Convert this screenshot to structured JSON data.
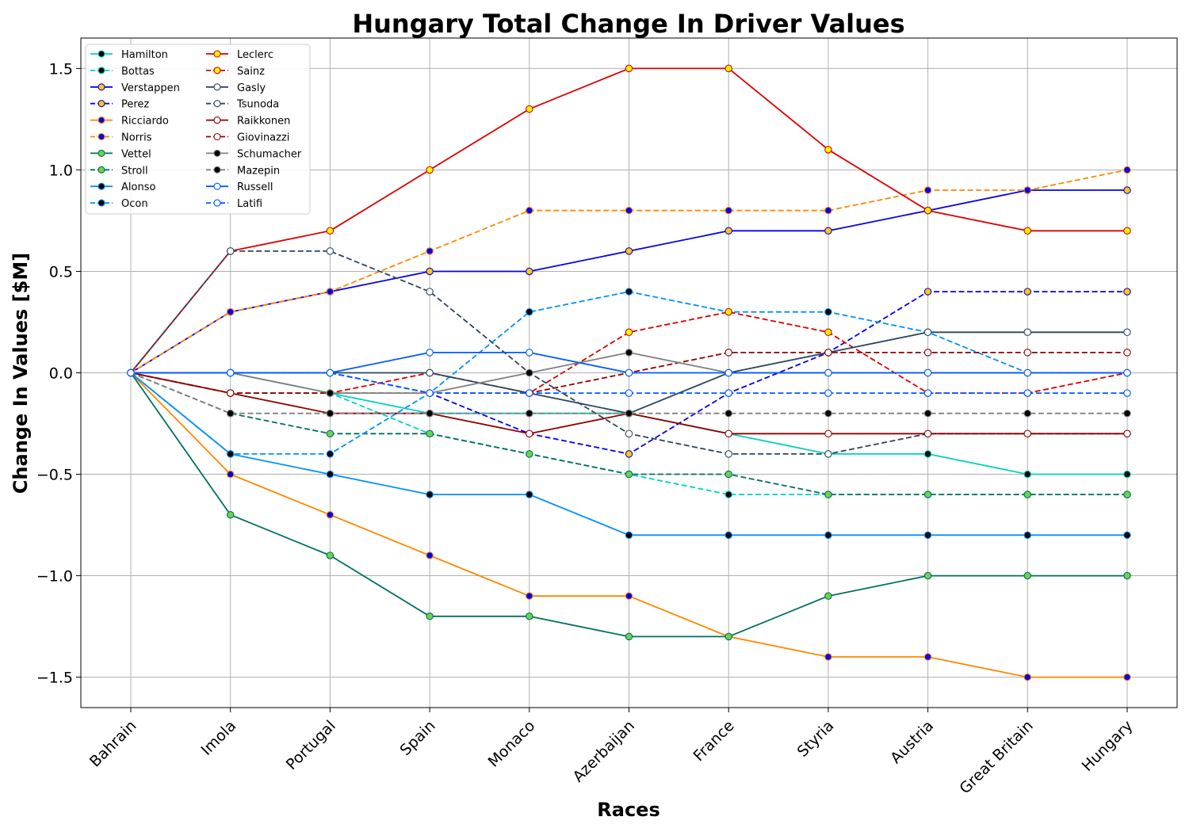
{
  "chart_data": {
    "type": "line",
    "title": "Hungary Total Change In Driver Values",
    "xlabel": "Races",
    "ylabel": "Change In Values [$M]",
    "categories": [
      "Bahrain",
      "Imola",
      "Portugal",
      "Spain",
      "Monaco",
      "Azerbaijan",
      "France",
      "Styria",
      "Austria",
      "Great Britain",
      "Hungary"
    ],
    "ylim": [
      -1.65,
      1.65
    ],
    "yticks": [
      -1.5,
      -1.0,
      -0.5,
      0.0,
      0.5,
      1.0,
      1.5
    ],
    "ytick_labels": [
      "−1.5",
      "−1.0",
      "−0.5",
      "0.0",
      "0.5",
      "1.0",
      "1.5"
    ],
    "grid": true,
    "legend_placement": "top-left",
    "series": [
      {
        "name": "Hamilton",
        "color": "#00D2BE",
        "dash": "solid",
        "marker_fill": "#000000",
        "values": [
          0,
          0,
          -0.1,
          -0.2,
          -0.2,
          -0.2,
          -0.3,
          -0.4,
          -0.4,
          -0.5,
          -0.5
        ]
      },
      {
        "name": "Bottas",
        "color": "#00D2BE",
        "dash": "dashed",
        "marker_fill": "#000000",
        "values": [
          0,
          -0.1,
          -0.1,
          -0.3,
          -0.4,
          -0.5,
          -0.6,
          -0.6,
          -0.6,
          -0.6,
          -0.6
        ]
      },
      {
        "name": "Verstappen",
        "color": "#0600EF",
        "dash": "solid",
        "marker_fill": "#FFC906",
        "values": [
          0,
          0.3,
          0.4,
          0.5,
          0.5,
          0.6,
          0.7,
          0.7,
          0.8,
          0.9,
          0.9
        ]
      },
      {
        "name": "Perez",
        "color": "#0600EF",
        "dash": "dashed",
        "marker_fill": "#FFC906",
        "values": [
          0,
          0,
          0,
          -0.1,
          -0.3,
          -0.4,
          -0.1,
          0.1,
          0.4,
          0.4,
          0.4
        ]
      },
      {
        "name": "Ricciardo",
        "color": "#FF8700",
        "dash": "solid",
        "marker_fill": "#0600EF",
        "values": [
          0,
          -0.5,
          -0.7,
          -0.9,
          -1.1,
          -1.1,
          -1.3,
          -1.4,
          -1.4,
          -1.5,
          -1.5
        ]
      },
      {
        "name": "Norris",
        "color": "#FF8700",
        "dash": "dashed",
        "marker_fill": "#0600EF",
        "values": [
          0,
          0.3,
          0.4,
          0.6,
          0.8,
          0.8,
          0.8,
          0.8,
          0.9,
          0.9,
          1.0
        ]
      },
      {
        "name": "Vettel",
        "color": "#006F62",
        "dash": "solid",
        "marker_fill": "#6CD34E",
        "values": [
          0,
          -0.7,
          -0.9,
          -1.2,
          -1.2,
          -1.3,
          -1.3,
          -1.1,
          -1.0,
          -1.0,
          -1.0
        ]
      },
      {
        "name": "Stroll",
        "color": "#006F62",
        "dash": "dashed",
        "marker_fill": "#6CD34E",
        "values": [
          0,
          -0.2,
          -0.3,
          -0.3,
          -0.4,
          -0.5,
          -0.5,
          -0.6,
          -0.6,
          -0.6,
          -0.6
        ]
      },
      {
        "name": "Alonso",
        "color": "#0090FF",
        "dash": "solid",
        "marker_fill": "#000000",
        "values": [
          0,
          -0.4,
          -0.5,
          -0.6,
          -0.6,
          -0.8,
          -0.8,
          -0.8,
          -0.8,
          -0.8,
          -0.8
        ]
      },
      {
        "name": "Ocon",
        "color": "#0090FF",
        "dash": "dashed",
        "marker_fill": "#000000",
        "values": [
          0,
          -0.4,
          -0.4,
          -0.1,
          0.3,
          0.4,
          0.3,
          0.3,
          0.2,
          0,
          0
        ]
      },
      {
        "name": "Leclerc",
        "color": "#DC0000",
        "dash": "solid",
        "marker_fill": "#FFF500",
        "values": [
          0,
          0.6,
          0.7,
          1.0,
          1.3,
          1.5,
          1.5,
          1.1,
          0.8,
          0.7,
          0.7
        ]
      },
      {
        "name": "Sainz",
        "color": "#DC0000",
        "dash": "dashed",
        "marker_fill": "#FFF500",
        "values": [
          0,
          -0.1,
          -0.1,
          0,
          -0.1,
          0.2,
          0.3,
          0.2,
          -0.1,
          -0.1,
          0
        ]
      },
      {
        "name": "Gasly",
        "color": "#2B4562",
        "dash": "solid",
        "marker_fill": "#FFFFFF",
        "values": [
          0,
          0,
          0,
          0,
          -0.1,
          -0.2,
          0,
          0.1,
          0.2,
          0.2,
          0.2
        ]
      },
      {
        "name": "Tsunoda",
        "color": "#2B4562",
        "dash": "dashed",
        "marker_fill": "#FFFFFF",
        "values": [
          0,
          0.6,
          0.6,
          0.4,
          0,
          -0.3,
          -0.4,
          -0.4,
          -0.3,
          -0.3,
          -0.3
        ]
      },
      {
        "name": "Raikkonen",
        "color": "#900000",
        "dash": "solid",
        "marker_fill": "#FFFFFF",
        "values": [
          0,
          -0.1,
          -0.2,
          -0.2,
          -0.3,
          -0.2,
          -0.3,
          -0.3,
          -0.3,
          -0.3,
          -0.3
        ]
      },
      {
        "name": "Giovinazzi",
        "color": "#900000",
        "dash": "dashed",
        "marker_fill": "#FFFFFF",
        "values": [
          0,
          -0.1,
          -0.1,
          -0.1,
          -0.1,
          0,
          0.1,
          0.1,
          0.1,
          0.1,
          0.1
        ]
      },
      {
        "name": "Schumacher",
        "color": "#808080",
        "dash": "solid",
        "marker_fill": "#000000",
        "values": [
          0,
          0,
          -0.1,
          -0.1,
          0,
          0.1,
          0,
          0,
          0,
          0,
          0
        ]
      },
      {
        "name": "Mazepin",
        "color": "#808080",
        "dash": "dashed",
        "marker_fill": "#000000",
        "values": [
          0,
          -0.2,
          -0.2,
          -0.2,
          -0.2,
          -0.2,
          -0.2,
          -0.2,
          -0.2,
          -0.2,
          -0.2
        ]
      },
      {
        "name": "Russell",
        "color": "#005AFF",
        "dash": "solid",
        "marker_fill": "#FFFFFF",
        "values": [
          0,
          0,
          0,
          0.1,
          0.1,
          0,
          0,
          0,
          0,
          0,
          0
        ]
      },
      {
        "name": "Latifi",
        "color": "#005AFF",
        "dash": "dashed",
        "marker_fill": "#FFFFFF",
        "values": [
          0,
          0,
          0,
          -0.1,
          -0.1,
          -0.1,
          -0.1,
          -0.1,
          -0.1,
          -0.1,
          -0.1
        ]
      }
    ]
  }
}
